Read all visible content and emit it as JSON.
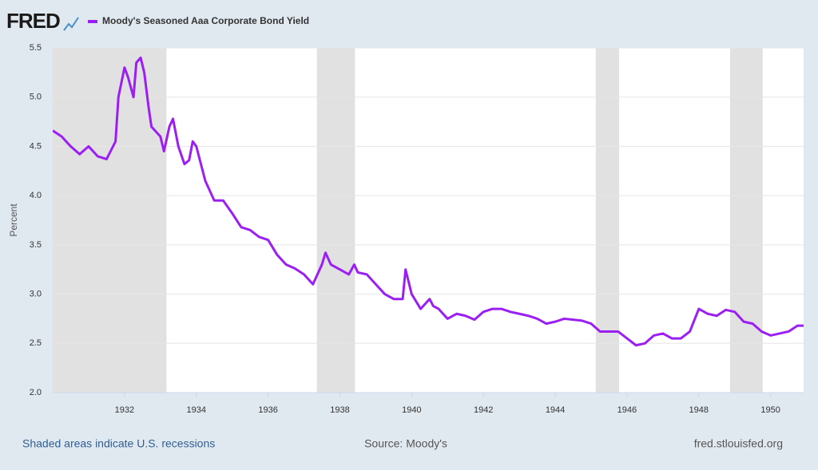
{
  "logo": "FRED",
  "chart_data": {
    "type": "line",
    "y_label": "Percent",
    "footer_left": "Shaded areas indicate U.S. recessions",
    "source": "Source: Moody's",
    "footer_right": "fred.stlouisfed.org",
    "x": [
      1930.0,
      1930.25,
      1930.5,
      1930.75,
      1931.0,
      1931.25,
      1931.5,
      1931.75,
      1931.83,
      1932.0,
      1932.1,
      1932.25,
      1932.33,
      1932.45,
      1932.55,
      1932.67,
      1932.75,
      1933.0,
      1933.1,
      1933.25,
      1933.35,
      1933.5,
      1933.67,
      1933.8,
      1933.9,
      1934.0,
      1934.25,
      1934.5,
      1934.75,
      1935.0,
      1935.25,
      1935.5,
      1935.75,
      1936.0,
      1936.25,
      1936.5,
      1936.75,
      1937.0,
      1937.25,
      1937.5,
      1937.6,
      1937.75,
      1938.0,
      1938.25,
      1938.4,
      1938.5,
      1938.75,
      1939.0,
      1939.25,
      1939.5,
      1939.75,
      1939.83,
      1940.0,
      1940.25,
      1940.5,
      1940.6,
      1940.75,
      1941.0,
      1941.25,
      1941.5,
      1941.75,
      1942.0,
      1942.25,
      1942.5,
      1942.75,
      1943.0,
      1943.25,
      1943.5,
      1943.75,
      1944.0,
      1944.25,
      1944.5,
      1944.75,
      1945.0,
      1945.25,
      1945.5,
      1945.75,
      1946.0,
      1946.25,
      1946.5,
      1946.75,
      1947.0,
      1947.25,
      1947.5,
      1947.75,
      1948.0,
      1948.25,
      1948.5,
      1948.75,
      1949.0,
      1949.25,
      1949.5,
      1949.75,
      1950.0,
      1950.25,
      1950.5,
      1950.75,
      1950.92
    ],
    "series": [
      {
        "name": "Moody's Seasoned Aaa Corporate Bond Yield",
        "color": "#9b1ff2",
        "values": [
          4.66,
          4.6,
          4.5,
          4.42,
          4.5,
          4.4,
          4.37,
          4.55,
          5.0,
          5.3,
          5.2,
          5.0,
          5.35,
          5.4,
          5.25,
          4.9,
          4.7,
          4.6,
          4.45,
          4.7,
          4.78,
          4.5,
          4.32,
          4.36,
          4.55,
          4.5,
          4.15,
          3.95,
          3.95,
          3.82,
          3.68,
          3.65,
          3.58,
          3.55,
          3.4,
          3.3,
          3.26,
          3.2,
          3.1,
          3.3,
          3.42,
          3.3,
          3.25,
          3.2,
          3.3,
          3.22,
          3.2,
          3.1,
          3.0,
          2.95,
          2.95,
          3.25,
          3.0,
          2.85,
          2.95,
          2.88,
          2.85,
          2.75,
          2.8,
          2.78,
          2.74,
          2.82,
          2.85,
          2.85,
          2.82,
          2.8,
          2.78,
          2.75,
          2.7,
          2.72,
          2.75,
          2.74,
          2.73,
          2.7,
          2.62,
          2.62,
          2.62,
          2.55,
          2.48,
          2.5,
          2.58,
          2.6,
          2.55,
          2.55,
          2.62,
          2.85,
          2.8,
          2.78,
          2.84,
          2.82,
          2.72,
          2.7,
          2.62,
          2.58,
          2.6,
          2.62,
          2.68,
          2.68
        ]
      }
    ],
    "recessions": [
      [
        1929.67,
        1933.17
      ],
      [
        1937.36,
        1938.42
      ],
      [
        1945.13,
        1945.78
      ],
      [
        1948.87,
        1949.78
      ]
    ],
    "xlim": [
      1930.0,
      1950.92
    ],
    "xticks": [
      1932,
      1934,
      1936,
      1938,
      1940,
      1942,
      1944,
      1946,
      1948,
      1950
    ],
    "ylim": [
      2.0,
      5.5
    ],
    "yticks": [
      {
        "value": 2.0,
        "label": "2.0"
      },
      2.5,
      {
        "value": 3.0,
        "label": "3.0"
      },
      3.5,
      {
        "value": 4.0,
        "label": "4.0"
      },
      4.5,
      {
        "value": 5.0,
        "label": "5.0"
      },
      5.5
    ],
    "grid": true
  }
}
